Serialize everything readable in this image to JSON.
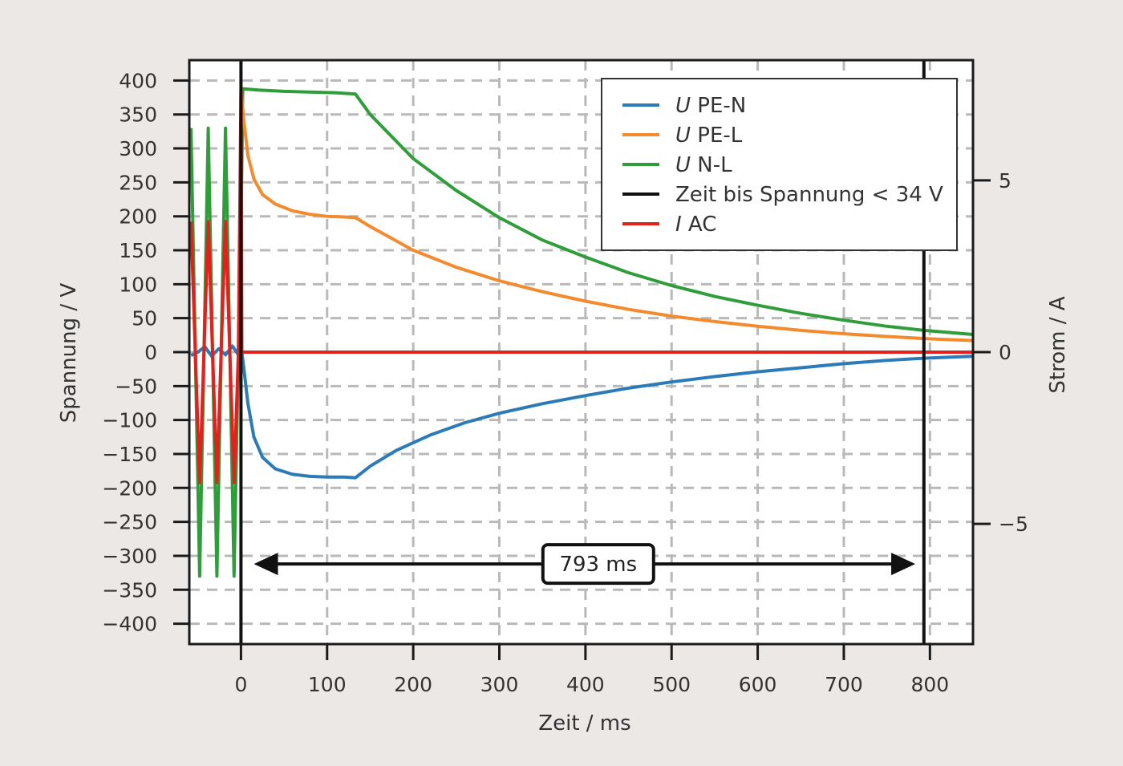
{
  "chart_data": {
    "type": "line",
    "xlabel": "Zeit / ms",
    "ylabel": "Spannung / V",
    "y2label": "Strom / A",
    "xlim": [
      -60,
      850
    ],
    "ylim": [
      -430,
      430
    ],
    "y2lim": [
      -8.5,
      8.5
    ],
    "x_ticks": [
      0,
      100,
      200,
      300,
      400,
      500,
      600,
      700,
      800
    ],
    "y_ticks": [
      400,
      350,
      300,
      250,
      200,
      150,
      100,
      50,
      0,
      -50,
      -100,
      -150,
      -200,
      -250,
      -300,
      -350,
      -400
    ],
    "y2_ticks": [
      5,
      0,
      -5
    ],
    "grid": true,
    "legend_position": "top-right",
    "series": [
      {
        "name": "U PE-N",
        "name_italic": "U",
        "name_rest": " PE-N",
        "color": "#2b7bb9",
        "axis": "left",
        "x": [
          -58,
          -50,
          -42,
          -34,
          -26,
          -18,
          -10,
          -4,
          0,
          3,
          8,
          15,
          25,
          40,
          60,
          80,
          100,
          120,
          133,
          150,
          180,
          220,
          260,
          300,
          350,
          400,
          450,
          500,
          550,
          600,
          650,
          700,
          750,
          793,
          850
        ],
        "y": [
          -5,
          0,
          8,
          -6,
          5,
          -4,
          9,
          -2,
          10,
          -20,
          -75,
          -125,
          -155,
          -172,
          -180,
          -183,
          -184,
          -184,
          -185,
          -168,
          -145,
          -122,
          -104,
          -90,
          -76,
          -64,
          -53,
          -44,
          -36,
          -29,
          -23,
          -17,
          -12,
          -9,
          -6
        ]
      },
      {
        "name": "U PE-L",
        "name_italic": "U",
        "name_rest": " PE-L",
        "color": "#f48a2e",
        "axis": "left",
        "x": [
          0,
          3,
          8,
          15,
          25,
          40,
          60,
          80,
          100,
          120,
          133,
          150,
          200,
          250,
          300,
          350,
          400,
          450,
          500,
          550,
          600,
          650,
          700,
          750,
          793,
          850
        ],
        "y": [
          390,
          345,
          290,
          255,
          232,
          218,
          208,
          203,
          200,
          199,
          198,
          185,
          150,
          125,
          105,
          89,
          75,
          63,
          53,
          45,
          38,
          32,
          27,
          23,
          20,
          17
        ]
      },
      {
        "name": "U N-L",
        "name_italic": "U",
        "name_rest": " N-L",
        "color": "#2f9e3a",
        "axis": "left",
        "x": [
          -58,
          -53,
          -48,
          -43,
          -38,
          -33,
          -28,
          -23,
          -18,
          -13,
          -8,
          -3,
          0,
          2,
          20,
          50,
          80,
          110,
          133,
          150,
          200,
          250,
          300,
          350,
          400,
          450,
          500,
          550,
          600,
          650,
          700,
          750,
          793,
          850
        ],
        "y": [
          330,
          0,
          -330,
          0,
          330,
          0,
          -330,
          0,
          330,
          0,
          -330,
          0,
          170,
          388,
          386,
          384,
          383,
          382,
          380,
          350,
          285,
          238,
          198,
          165,
          140,
          117,
          98,
          82,
          69,
          57,
          47,
          38,
          32,
          26
        ]
      },
      {
        "name": "Zeit bis Spannung < 34 V",
        "name_italic": "",
        "name_rest": "Zeit bis Spannung < 34 V",
        "color": "#111111",
        "axis": "left",
        "markers_x": [
          0,
          793
        ]
      },
      {
        "name": "I AC",
        "name_italic": "I",
        "name_rest": " AC",
        "color": "#e0211d",
        "axis": "right",
        "x": [
          -58,
          -53,
          -48,
          -43,
          -38,
          -33,
          -28,
          -23,
          -18,
          -13,
          -8,
          -3,
          0,
          1,
          2,
          850
        ],
        "y": [
          3.8,
          0,
          -3.8,
          0,
          3.8,
          0,
          -3.8,
          0,
          3.8,
          0,
          -3.8,
          0,
          7.6,
          0,
          0,
          0
        ]
      }
    ],
    "annotations": [
      {
        "text": "793 ms",
        "from_x": 15,
        "to_x": 783,
        "at_y": -312
      }
    ]
  }
}
